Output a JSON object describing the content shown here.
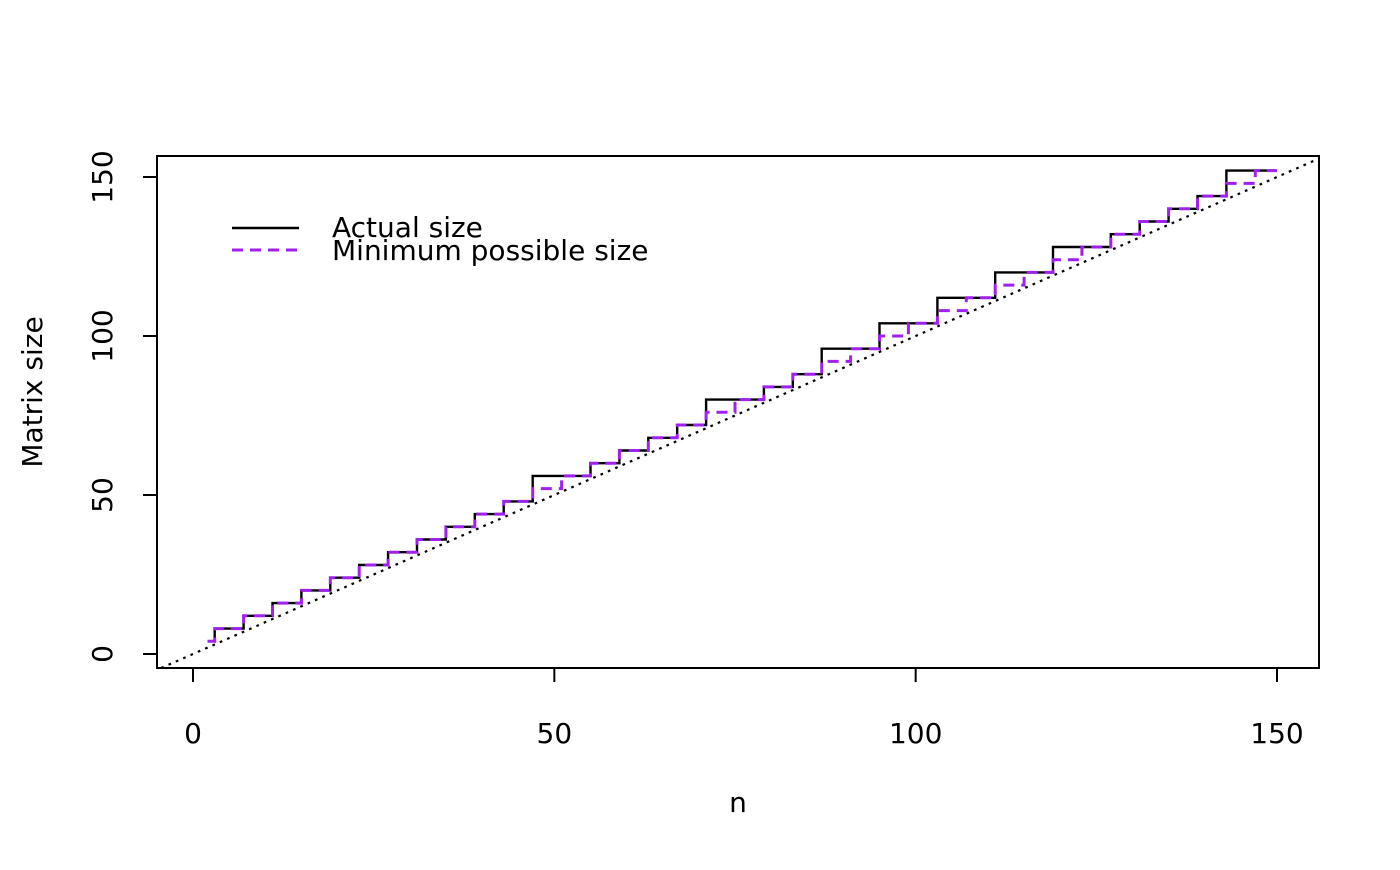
{
  "chart_data": {
    "type": "line",
    "subtype": "step",
    "title": "",
    "xlabel": "n",
    "ylabel": "Matrix size",
    "x_ticks": [
      0,
      50,
      100,
      150
    ],
    "y_ticks": [
      0,
      50,
      100,
      150
    ],
    "xlim": [
      -5,
      155.8
    ],
    "ylim": [
      -4.4,
      156.6
    ],
    "grid": false,
    "background": "#ffffff",
    "axis_color": "#000000",
    "legend": {
      "position": "inside-top-left",
      "entries": [
        {
          "label": "Actual size",
          "color": "#000000",
          "line_style": "solid"
        },
        {
          "label": "Minimum possible size",
          "color": "#A020F0",
          "line_style": "dashed"
        }
      ]
    },
    "reference_line": {
      "name": "identity y=x",
      "style": "dotted",
      "color": "#000000",
      "from": [
        -4.4,
        -4.4
      ],
      "to": [
        155.8,
        155.8
      ]
    },
    "series": [
      {
        "name": "Actual size",
        "color": "#000000",
        "line_style": "solid",
        "x_start": 2,
        "x_end": 150,
        "step_plateaus": [
          [
            2,
            4
          ],
          [
            3,
            8
          ],
          [
            7,
            12
          ],
          [
            11,
            16
          ],
          [
            15,
            20
          ],
          [
            19,
            24
          ],
          [
            23,
            28
          ],
          [
            27,
            32
          ],
          [
            31,
            36
          ],
          [
            35,
            40
          ],
          [
            39,
            44
          ],
          [
            43,
            48
          ],
          [
            47,
            56
          ],
          [
            55,
            60
          ],
          [
            59,
            64
          ],
          [
            63,
            68
          ],
          [
            67,
            72
          ],
          [
            71,
            80
          ],
          [
            79,
            84
          ],
          [
            83,
            88
          ],
          [
            87,
            96
          ],
          [
            95,
            104
          ],
          [
            103,
            112
          ],
          [
            111,
            120
          ],
          [
            119,
            128
          ],
          [
            127,
            132
          ],
          [
            131,
            136
          ],
          [
            135,
            140
          ],
          [
            139,
            144
          ],
          [
            143,
            152
          ]
        ]
      },
      {
        "name": "Minimum possible size",
        "color": "#A020F0",
        "line_style": "dashed",
        "x_start": 2,
        "x_end": 150,
        "step_plateaus": [
          [
            2,
            4
          ],
          [
            3,
            8
          ],
          [
            7,
            12
          ],
          [
            11,
            16
          ],
          [
            15,
            20
          ],
          [
            19,
            24
          ],
          [
            23,
            28
          ],
          [
            27,
            32
          ],
          [
            31,
            36
          ],
          [
            35,
            40
          ],
          [
            39,
            44
          ],
          [
            43,
            48
          ],
          [
            47,
            52
          ],
          [
            51,
            56
          ],
          [
            55,
            60
          ],
          [
            59,
            64
          ],
          [
            63,
            68
          ],
          [
            67,
            72
          ],
          [
            71,
            76
          ],
          [
            75,
            80
          ],
          [
            79,
            84
          ],
          [
            83,
            88
          ],
          [
            87,
            92
          ],
          [
            91,
            96
          ],
          [
            95,
            100
          ],
          [
            99,
            104
          ],
          [
            103,
            108
          ],
          [
            107,
            112
          ],
          [
            111,
            116
          ],
          [
            115,
            120
          ],
          [
            119,
            124
          ],
          [
            123,
            128
          ],
          [
            127,
            132
          ],
          [
            131,
            136
          ],
          [
            135,
            140
          ],
          [
            139,
            144
          ],
          [
            143,
            148
          ],
          [
            147,
            152
          ]
        ]
      }
    ]
  }
}
